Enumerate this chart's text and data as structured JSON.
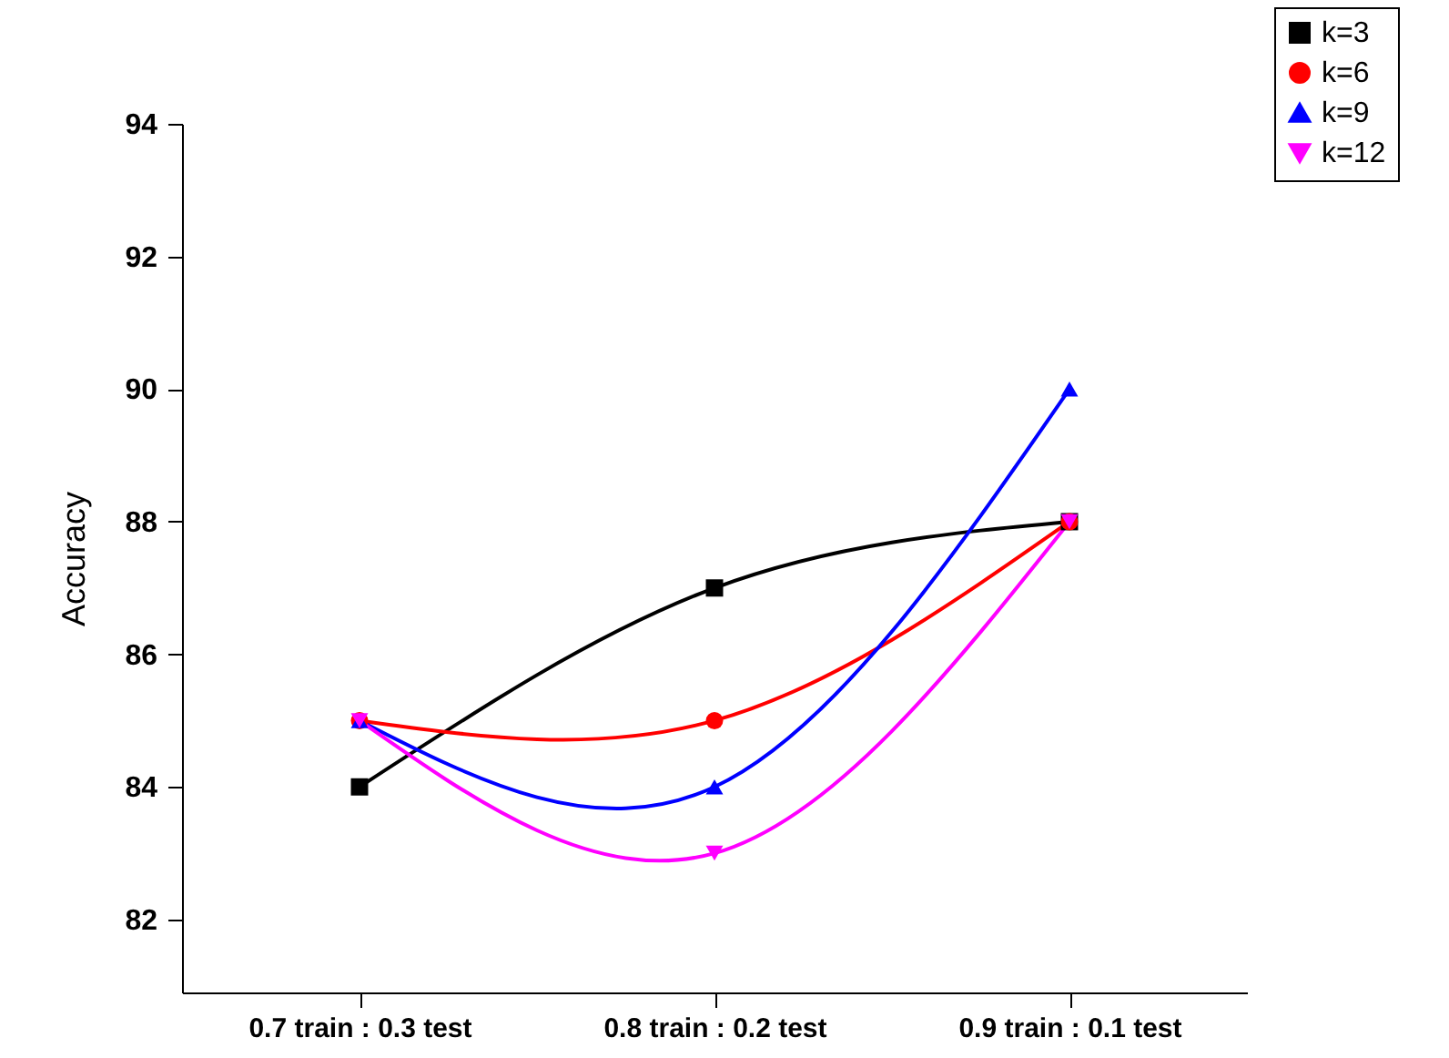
{
  "chart_data": {
    "type": "line",
    "ylabel": "Accuracy",
    "categories": [
      "0.7 train : 0.3 test",
      "0.8 train : 0.2 test",
      "0.9 train : 0.1 test"
    ],
    "series": [
      {
        "name": "k=3",
        "color": "#000000",
        "marker": "square",
        "values": [
          84,
          87,
          88
        ]
      },
      {
        "name": "k=6",
        "color": "#ff0000",
        "marker": "circle",
        "values": [
          85,
          85,
          88
        ]
      },
      {
        "name": "k=9",
        "color": "#0000ff",
        "marker": "triangle",
        "values": [
          85,
          84,
          90
        ]
      },
      {
        "name": "k=12",
        "color": "#ff00ff",
        "marker": "triangle-down",
        "values": [
          85,
          83,
          88
        ]
      }
    ],
    "ylim": [
      80.9,
      94
    ],
    "yticks": [
      82,
      84,
      86,
      88,
      90,
      92,
      94
    ],
    "grid": false,
    "legend": "top right"
  }
}
